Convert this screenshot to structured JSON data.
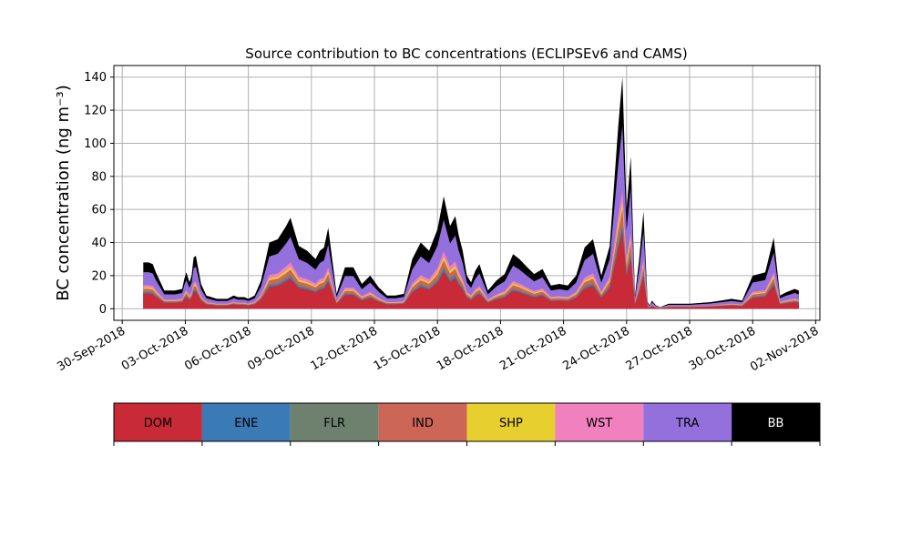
{
  "chart_data": {
    "type": "area",
    "title": "Source contribution to BC concentrations (ECLIPSEv6 and CAMS)",
    "ylabel": "BC concentration (ng m⁻³)",
    "xlabel": "",
    "ylim": [
      -7,
      147
    ],
    "yticks": [
      0,
      20,
      40,
      60,
      80,
      100,
      120,
      140
    ],
    "xlim_days": [
      -0.4,
      33.2
    ],
    "xticks": [
      {
        "day": 0,
        "label": "30-Sep-2018"
      },
      {
        "day": 3,
        "label": "03-Oct-2018"
      },
      {
        "day": 6,
        "label": "06-Oct-2018"
      },
      {
        "day": 9,
        "label": "09-Oct-2018"
      },
      {
        "day": 12,
        "label": "12-Oct-2018"
      },
      {
        "day": 15,
        "label": "15-Oct-2018"
      },
      {
        "day": 18,
        "label": "18-Oct-2018"
      },
      {
        "day": 21,
        "label": "21-Oct-2018"
      },
      {
        "day": 24,
        "label": "24-Oct-2018"
      },
      {
        "day": 27,
        "label": "27-Oct-2018"
      },
      {
        "day": 30,
        "label": "30-Oct-2018"
      },
      {
        "day": 33,
        "label": "02-Nov-2018"
      }
    ],
    "grid": true,
    "legend_position": "below",
    "series_names": [
      "DOM",
      "ENE",
      "FLR",
      "IND",
      "SHP",
      "WST",
      "TRA",
      "BB"
    ],
    "series_colors": [
      "#c82a38",
      "#3a7ab5",
      "#6e806e",
      "#cc6657",
      "#e8cf30",
      "#f080be",
      "#9370db",
      "#000000"
    ],
    "legend_text_colors": [
      "#000000",
      "#000000",
      "#000000",
      "#000000",
      "#000000",
      "#000000",
      "#000000",
      "#ffffff"
    ],
    "total_x": [
      1.0,
      1.25,
      1.45,
      1.6,
      2.0,
      2.5,
      2.85,
      2.95,
      3.05,
      3.2,
      3.3,
      3.4,
      3.5,
      3.75,
      4.0,
      4.5,
      5.0,
      5.3,
      5.5,
      5.8,
      6.0,
      6.3,
      6.6,
      7.0,
      7.4,
      7.8,
      8.0,
      8.4,
      8.8,
      9.2,
      9.4,
      9.6,
      9.8,
      10.2,
      10.6,
      11.0,
      11.4,
      11.8,
      12.2,
      12.6,
      13.0,
      13.4,
      13.8,
      14.2,
      14.6,
      15.0,
      15.3,
      15.6,
      15.85,
      16.0,
      16.2,
      16.4,
      16.6,
      16.8,
      17.0,
      17.4,
      17.8,
      18.2,
      18.6,
      18.9,
      19.2,
      19.6,
      20.0,
      20.4,
      20.8,
      21.2,
      21.6,
      22.0,
      22.4,
      22.8,
      23.2,
      23.6,
      23.8,
      24.0,
      24.2,
      24.4,
      24.6,
      24.8,
      25.0,
      25.1,
      25.2,
      25.4,
      25.6,
      25.8,
      26.0,
      26.5,
      27.0,
      28.0,
      28.5,
      29.0,
      29.5,
      30.0,
      30.3,
      30.6,
      31.0,
      31.3,
      31.6,
      32.0,
      32.2
    ],
    "total_y": [
      28,
      28,
      27,
      22,
      11,
      11,
      12,
      18,
      22,
      16,
      20,
      31,
      32,
      15,
      8,
      6,
      6,
      8,
      7,
      7,
      6,
      8,
      17,
      40,
      42,
      50,
      55,
      38,
      35,
      30,
      35,
      37,
      49,
      9,
      25,
      25,
      15,
      20,
      13,
      8,
      8,
      9,
      30,
      40,
      35,
      48,
      68,
      50,
      56,
      45,
      35,
      20,
      16,
      23,
      27,
      11,
      17,
      21,
      33,
      30,
      26,
      21,
      24,
      14,
      15,
      14,
      20,
      37,
      42,
      20,
      38,
      110,
      140,
      60,
      92,
      8,
      30,
      59,
      4,
      2,
      5,
      2,
      1,
      2,
      3,
      3,
      3,
      4,
      5,
      6,
      5,
      20,
      21,
      22,
      43,
      8,
      10,
      12,
      11
    ],
    "source_shares": [
      0.33,
      0.02,
      0.02,
      0.06,
      0.03,
      0.05,
      0.28,
      0.21
    ],
    "legend_ticks_count": 9
  }
}
